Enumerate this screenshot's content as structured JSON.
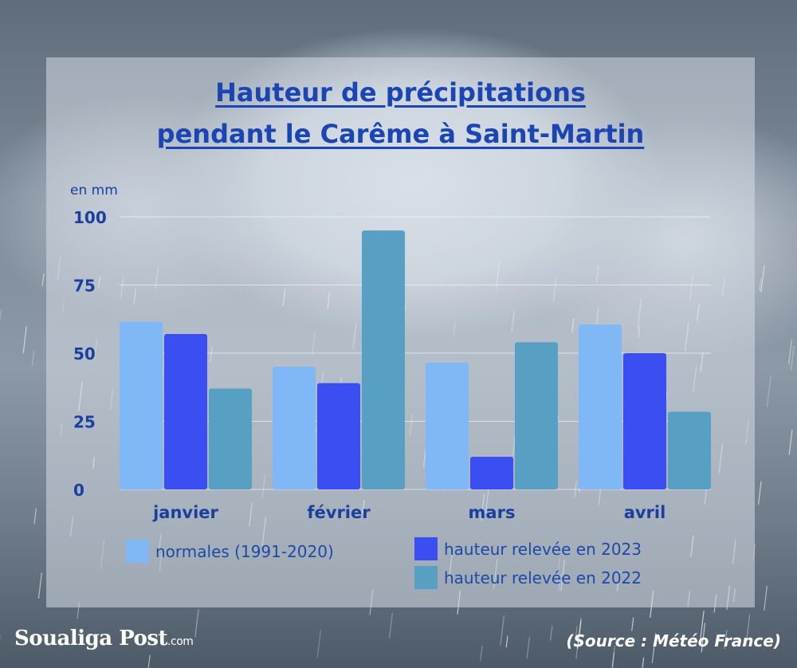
{
  "title_lines": [
    "Hauteur de précipitations",
    "pendant le Carême à Saint-Martin"
  ],
  "colors": {
    "normales": "#7fb8f4",
    "h2023": "#3a4ef2",
    "h2022": "#57a0c3",
    "text": "#1b3f9e"
  },
  "chart_data": {
    "type": "bar",
    "title": "Hauteur de précipitations pendant le Carême à Saint-Martin",
    "unit_label": "en mm",
    "categories": [
      "janvier",
      "février",
      "mars",
      "avril"
    ],
    "series": [
      {
        "name": "normales (1991-2020)",
        "values": [
          61.5,
          45,
          46.5,
          60.5
        ]
      },
      {
        "name": "hauteur relevée en 2023",
        "values": [
          57,
          39,
          12,
          50
        ]
      },
      {
        "name": "hauteur relevée en 2022",
        "values": [
          37,
          95,
          54,
          28.5
        ]
      }
    ],
    "yticks": [
      "0",
      "25",
      "50",
      "75",
      "100"
    ],
    "ylim": [
      0,
      100
    ],
    "grid": true
  },
  "legend": {
    "normales": "normales (1991-2020)",
    "h2023": "hauteur relevée en 2023",
    "h2022": "hauteur relevée en 2022"
  },
  "brand": {
    "name": "Soualiga Post",
    "suffix": ".com"
  },
  "source": "(Source :  Météo France)"
}
